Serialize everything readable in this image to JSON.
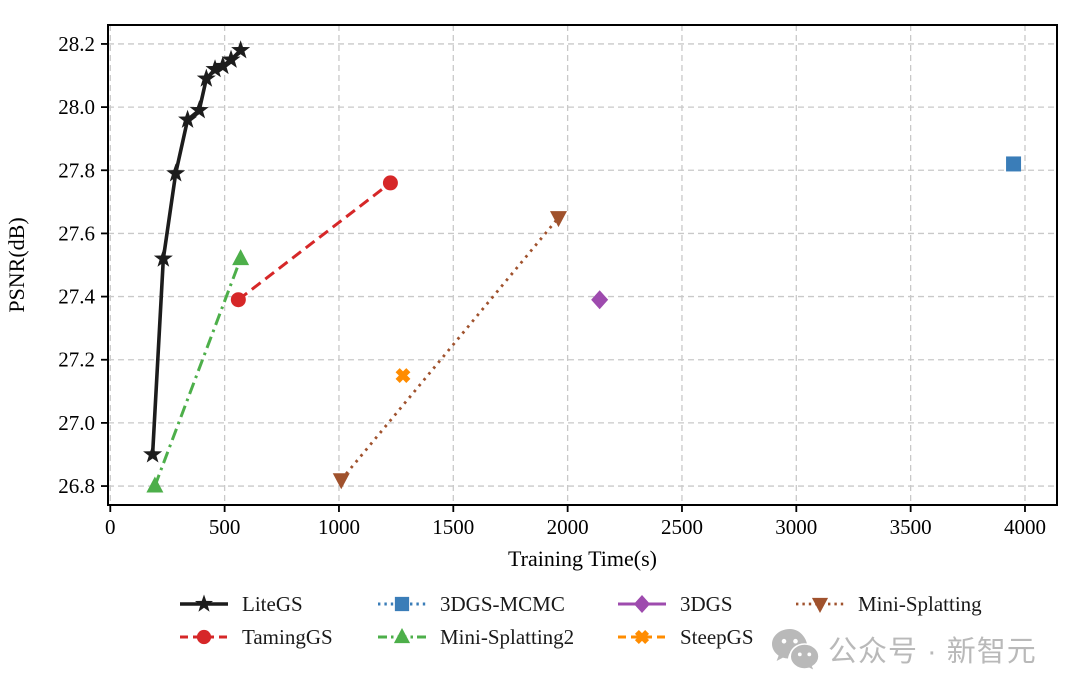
{
  "watermark": {
    "text": "公众号 · 新智元"
  },
  "chart_data": {
    "type": "line",
    "title": "",
    "xlabel": "Training Time(s)",
    "ylabel": "PSNR(dB)",
    "xlim": [
      -10,
      4140
    ],
    "ylim": [
      26.74,
      28.26
    ],
    "xticks": [
      0,
      500,
      1000,
      1500,
      2000,
      2500,
      3000,
      3500,
      4000
    ],
    "yticks": [
      26.8,
      27.0,
      27.2,
      27.4,
      27.6,
      27.8,
      28.0,
      28.2
    ],
    "grid": true,
    "grid_color": "#c9c9c9",
    "axis_color": "#000000",
    "legend_position": "bottom",
    "series": [
      {
        "name": "LiteGS",
        "color": "#1c1c1c",
        "marker": "star",
        "linestyle": "solid",
        "linewidth": 3.6,
        "points": [
          [
            185,
            26.9
          ],
          [
            232,
            27.52
          ],
          [
            286,
            27.79
          ],
          [
            338,
            27.96
          ],
          [
            389,
            27.99
          ],
          [
            420,
            28.09
          ],
          [
            458,
            28.12
          ],
          [
            492,
            28.13
          ],
          [
            528,
            28.15
          ],
          [
            570,
            28.18
          ]
        ]
      },
      {
        "name": "TamingGS",
        "color": "#d62728",
        "marker": "circle",
        "linestyle": "dashed",
        "linewidth": 3,
        "points": [
          [
            560,
            27.39
          ],
          [
            1225,
            27.76
          ]
        ]
      },
      {
        "name": "3DGS-MCMC",
        "color": "#3a7db8",
        "marker": "square",
        "linestyle": "dotted",
        "linewidth": 3,
        "points": [
          [
            3950,
            27.82
          ]
        ]
      },
      {
        "name": "Mini-Splatting2",
        "color": "#4daf4a",
        "marker": "triangle-up",
        "linestyle": "dashdot",
        "linewidth": 3,
        "points": [
          [
            195,
            26.8
          ],
          [
            570,
            27.52
          ]
        ]
      },
      {
        "name": "3DGS",
        "color": "#9e4bae",
        "marker": "diamond",
        "linestyle": "solid",
        "linewidth": 3,
        "points": [
          [
            2140,
            27.39
          ]
        ]
      },
      {
        "name": "SteepGS",
        "color": "#ff8c00",
        "marker": "x",
        "linestyle": "dashed",
        "linewidth": 3,
        "points": [
          [
            1280,
            27.15
          ]
        ]
      },
      {
        "name": "Mini-Splatting",
        "color": "#a0522d",
        "marker": "triangle-down",
        "linestyle": "dotted",
        "linewidth": 2.8,
        "points": [
          [
            1010,
            26.82
          ],
          [
            1960,
            27.65
          ]
        ]
      }
    ],
    "legend_layout": [
      [
        "LiteGS",
        "3DGS-MCMC",
        "3DGS",
        "Mini-Splatting"
      ],
      [
        "TamingGS",
        "Mini-Splatting2",
        "SteepGS"
      ]
    ]
  }
}
